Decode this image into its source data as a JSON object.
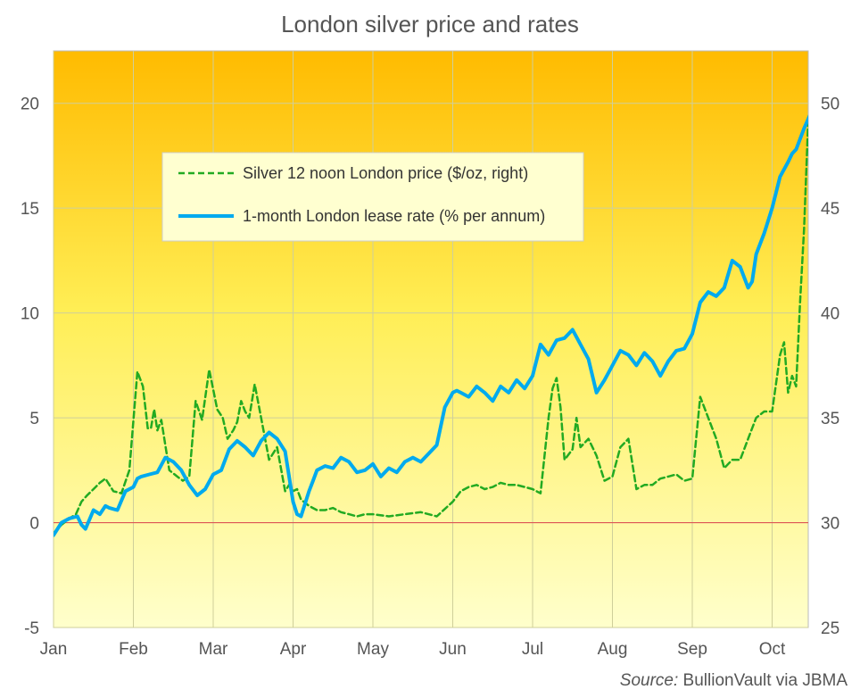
{
  "chart_data": {
    "type": "line",
    "title": "London silver price and rates",
    "x_ticks": [
      "Jan",
      "Feb",
      "Mar",
      "Apr",
      "May",
      "Jun",
      "Jul",
      "Aug",
      "Sep",
      "Oct"
    ],
    "y_left": {
      "ylim": [
        -5,
        22.5
      ],
      "ticks": [
        -5,
        0,
        5,
        10,
        15,
        20
      ]
    },
    "y_right": {
      "ylim": [
        25,
        52.5
      ],
      "ticks": [
        25,
        30,
        35,
        40,
        45,
        50
      ]
    },
    "zero_line": 0,
    "legend": {
      "placement": "upper-left",
      "entries": [
        "Silver 12 noon London price ($/oz, right)",
        "1-month London lease rate (% per annum)"
      ]
    },
    "source_label": "Source:",
    "source_text": "BullionVault via JBMA",
    "series": [
      {
        "name": "Silver 12 noon London price ($/oz, right)",
        "axis": "right",
        "color": "#22aa22",
        "style": "dashed",
        "x": [
          0,
          0.1,
          0.2,
          0.28,
          0.35,
          0.42,
          0.5,
          0.58,
          0.65,
          0.75,
          0.85,
          0.95,
          1.05,
          1.12,
          1.18,
          1.22,
          1.26,
          1.3,
          1.35,
          1.45,
          1.55,
          1.62,
          1.7,
          1.78,
          1.86,
          1.95,
          2.05,
          2.12,
          2.18,
          2.25,
          2.3,
          2.35,
          2.4,
          2.45,
          2.52,
          2.6,
          2.7,
          2.8,
          2.9,
          2.95,
          3.0,
          3.05,
          3.1,
          3.2,
          3.3,
          3.4,
          3.5,
          3.6,
          3.7,
          3.8,
          3.9,
          4.0,
          4.2,
          4.4,
          4.6,
          4.8,
          5.0,
          5.1,
          5.2,
          5.3,
          5.4,
          5.5,
          5.6,
          5.7,
          5.8,
          5.9,
          6.0,
          6.1,
          6.2,
          6.25,
          6.3,
          6.35,
          6.4,
          6.5,
          6.55,
          6.6,
          6.7,
          6.8,
          6.9,
          7.0,
          7.1,
          7.2,
          7.3,
          7.4,
          7.5,
          7.6,
          7.7,
          7.8,
          7.9,
          8.0,
          8.1,
          8.2,
          8.3,
          8.4,
          8.5,
          8.6,
          8.7,
          8.8,
          8.9,
          9.0,
          9.1,
          9.15,
          9.2,
          9.25,
          9.3,
          9.35,
          9.4,
          9.45,
          9.48
        ],
        "values": [
          29.5,
          29.9,
          30.2,
          30.4,
          31.0,
          31.3,
          31.6,
          31.9,
          32.1,
          31.5,
          31.4,
          32.5,
          37.2,
          36.5,
          34.5,
          34.5,
          35.4,
          34.4,
          34.9,
          32.5,
          32.2,
          32.0,
          32.2,
          35.8,
          34.9,
          37.3,
          35.4,
          35.0,
          34.0,
          34.4,
          34.8,
          35.8,
          35.3,
          35.0,
          36.6,
          35.0,
          33.0,
          33.6,
          31.5,
          31.8,
          31.5,
          31.6,
          31.1,
          30.8,
          30.6,
          30.6,
          30.7,
          30.5,
          30.4,
          30.3,
          30.4,
          30.4,
          30.3,
          30.4,
          30.5,
          30.3,
          31.0,
          31.5,
          31.7,
          31.8,
          31.6,
          31.7,
          31.9,
          31.8,
          31.8,
          31.7,
          31.6,
          31.4,
          35.0,
          36.4,
          36.9,
          35.5,
          33.0,
          33.5,
          35.0,
          33.6,
          34.0,
          33.2,
          32.0,
          32.2,
          33.6,
          34.0,
          31.6,
          31.8,
          31.8,
          32.1,
          32.2,
          32.3,
          32.0,
          32.1,
          36.0,
          35.0,
          34.0,
          32.6,
          33.0,
          33.0,
          34.0,
          35.0,
          35.3,
          35.3,
          38.0,
          38.6,
          36.2,
          37.0,
          36.5,
          40.5,
          44.0,
          49.0,
          49.5
        ]
      },
      {
        "name": "1-month London lease rate (% per annum)",
        "axis": "left",
        "color": "#00aaee",
        "style": "solid",
        "x": [
          0,
          0.1,
          0.2,
          0.3,
          0.35,
          0.4,
          0.5,
          0.58,
          0.65,
          0.7,
          0.8,
          0.9,
          1.0,
          1.05,
          1.1,
          1.2,
          1.3,
          1.4,
          1.5,
          1.6,
          1.7,
          1.8,
          1.9,
          2.0,
          2.1,
          2.2,
          2.3,
          2.4,
          2.5,
          2.6,
          2.7,
          2.8,
          2.9,
          3.0,
          3.05,
          3.1,
          3.2,
          3.25,
          3.3,
          3.4,
          3.5,
          3.6,
          3.7,
          3.8,
          3.9,
          4.0,
          4.1,
          4.2,
          4.3,
          4.4,
          4.5,
          4.6,
          4.7,
          4.8,
          4.9,
          5.0,
          5.05,
          5.1,
          5.2,
          5.3,
          5.4,
          5.5,
          5.6,
          5.7,
          5.8,
          5.9,
          6.0,
          6.1,
          6.2,
          6.3,
          6.4,
          6.5,
          6.6,
          6.7,
          6.8,
          6.9,
          7.0,
          7.1,
          7.2,
          7.3,
          7.4,
          7.5,
          7.6,
          7.7,
          7.8,
          7.9,
          8.0,
          8.1,
          8.2,
          8.3,
          8.4,
          8.5,
          8.6,
          8.7,
          8.75,
          8.8,
          8.9,
          9.0,
          9.1,
          9.2,
          9.25,
          9.3,
          9.4,
          9.48
        ],
        "values": [
          -0.6,
          0.0,
          0.2,
          0.3,
          -0.1,
          -0.3,
          0.6,
          0.4,
          0.8,
          0.7,
          0.6,
          1.5,
          1.7,
          2.1,
          2.2,
          2.3,
          2.4,
          3.1,
          2.9,
          2.5,
          1.8,
          1.3,
          1.6,
          2.3,
          2.5,
          3.5,
          3.9,
          3.6,
          3.2,
          3.9,
          4.3,
          4.0,
          3.4,
          1.0,
          0.4,
          0.3,
          1.5,
          2.0,
          2.5,
          2.7,
          2.6,
          3.1,
          2.9,
          2.4,
          2.5,
          2.8,
          2.2,
          2.6,
          2.4,
          2.9,
          3.1,
          2.9,
          3.3,
          3.7,
          5.5,
          6.2,
          6.3,
          6.2,
          6.0,
          6.5,
          6.2,
          5.8,
          6.5,
          6.2,
          6.8,
          6.4,
          7.0,
          8.5,
          8.0,
          8.7,
          8.8,
          9.2,
          8.5,
          7.8,
          6.2,
          6.8,
          7.5,
          8.2,
          8.0,
          7.5,
          8.1,
          7.7,
          7.0,
          7.7,
          8.2,
          8.3,
          9.0,
          10.5,
          11.0,
          10.8,
          11.2,
          12.5,
          12.2,
          11.2,
          11.5,
          12.8,
          13.8,
          15.0,
          16.5,
          17.2,
          17.6,
          17.8,
          18.8,
          19.5
        ]
      }
    ]
  }
}
